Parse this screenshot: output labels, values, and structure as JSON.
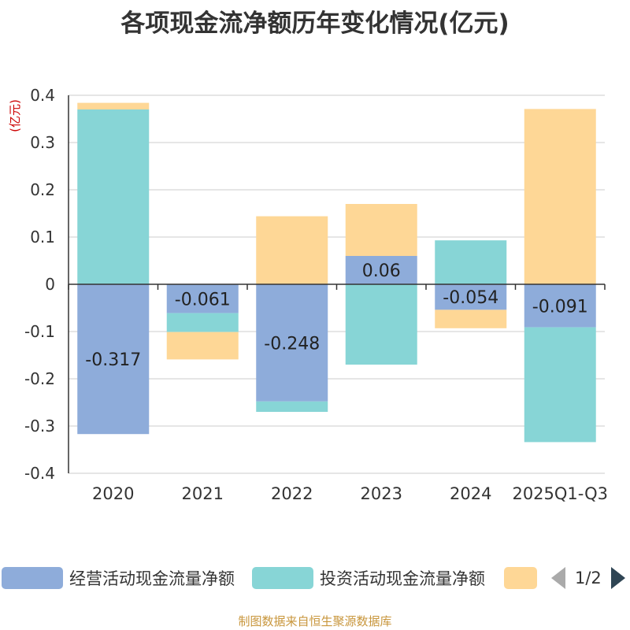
{
  "title": "各项现金流净额历年变化情况(亿元)",
  "footer": "制图数据来自恒生聚源数据库",
  "colors": {
    "operating": "#8eacda",
    "investing": "#87d5d6",
    "financing": "#fed796",
    "axis": "#333333",
    "grid": "#cccccc",
    "unit": "#cc0000"
  },
  "legend": {
    "items": [
      {
        "label": "经营活动现金流量净额"
      },
      {
        "label": "投资活动现金流量净额"
      },
      {
        "label": ""
      }
    ],
    "page": "1/2"
  },
  "chart_data": {
    "type": "bar",
    "stacked": true,
    "unit_label": "(亿元)",
    "categories": [
      "2020",
      "2021",
      "2022",
      "2023",
      "2024",
      "2025Q1-Q3"
    ],
    "ylim": [
      -0.4,
      0.4
    ],
    "yticks": [
      0.4,
      0.3,
      0.2,
      0.1,
      0,
      -0.1,
      -0.2,
      -0.3,
      -0.4
    ],
    "ytick_labels": [
      "0.4",
      "0.3",
      "0.2",
      "0.1",
      "0",
      "-0.1",
      "-0.2",
      "-0.3",
      "-0.4"
    ],
    "grid": true,
    "series": [
      {
        "name": "经营活动现金流量净额",
        "color_key": "operating",
        "values": [
          -0.317,
          -0.061,
          -0.248,
          0.06,
          -0.054,
          -0.091
        ],
        "labels": [
          "-0.317",
          "-0.061",
          "-0.248",
          "0.06",
          "-0.054",
          "-0.091"
        ]
      },
      {
        "name": "投资活动现金流量净额",
        "color_key": "investing",
        "values": [
          0.37,
          -0.04,
          -0.022,
          -0.17,
          0.093,
          -0.243
        ]
      },
      {
        "name": "",
        "color_key": "financing",
        "values": [
          0.014,
          -0.058,
          0.144,
          0.11,
          -0.039,
          0.371
        ]
      }
    ]
  }
}
